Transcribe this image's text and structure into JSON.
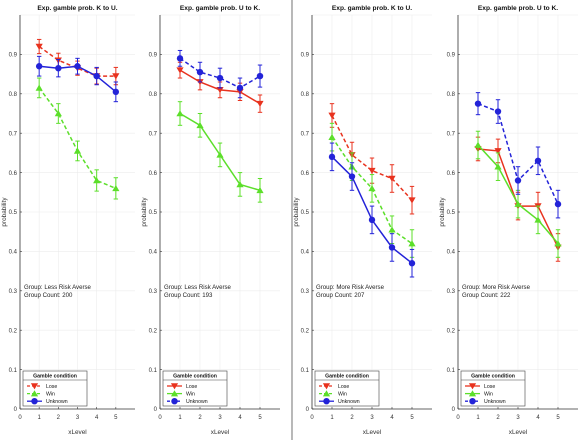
{
  "colors": {
    "lose": "#e8321e",
    "win": "#5cdf2a",
    "unknown": "#2323d8",
    "divider": "#8a8a8a"
  },
  "chart_data": [
    {
      "type": "line",
      "title": "Exp. gamble prob. K to U.",
      "xlabel": "xLevel",
      "ylabel": "probability",
      "xlim": [
        0,
        6
      ],
      "ylim": [
        0,
        1
      ],
      "xticks": [
        "0",
        "1",
        "2",
        "3",
        "4",
        "5"
      ],
      "yticks": [
        "0",
        "0.1",
        "0.2",
        "0.3",
        "0.4",
        "0.5",
        "0.6",
        "0.7",
        "0.8",
        "0.9"
      ],
      "grid": true,
      "annotation": [
        "Group: Less Risk Averse",
        "Group Count: 200"
      ],
      "legend": {
        "title": "Gamble condition",
        "position": "bottom-left"
      },
      "series": [
        {
          "name": "Lose",
          "style": "dashed",
          "x": [
            1,
            2,
            3,
            4,
            5
          ],
          "y": [
            0.92,
            0.885,
            0.865,
            0.845,
            0.845
          ],
          "err": [
            0.018,
            0.018,
            0.018,
            0.02,
            0.022
          ]
        },
        {
          "name": "Win",
          "style": "dashed",
          "x": [
            1,
            2,
            3,
            4,
            5
          ],
          "y": [
            0.815,
            0.75,
            0.655,
            0.58,
            0.56
          ],
          "err": [
            0.025,
            0.025,
            0.025,
            0.027,
            0.027
          ]
        },
        {
          "name": "Unknown",
          "style": "solid",
          "x": [
            1,
            2,
            3,
            4,
            5
          ],
          "y": [
            0.87,
            0.865,
            0.87,
            0.845,
            0.805
          ],
          "err": [
            0.025,
            0.022,
            0.02,
            0.022,
            0.025
          ]
        }
      ]
    },
    {
      "type": "line",
      "title": "Exp. gamble prob. U to K.",
      "xlabel": "xLevel",
      "ylabel": "probability",
      "xlim": [
        0,
        6
      ],
      "ylim": [
        0,
        1
      ],
      "xticks": [
        "0",
        "1",
        "2",
        "3",
        "4",
        "5"
      ],
      "yticks": [
        "0",
        "0.1",
        "0.2",
        "0.3",
        "0.4",
        "0.5",
        "0.6",
        "0.7",
        "0.8",
        "0.9"
      ],
      "grid": true,
      "annotation": [
        "Group: Less Risk Averse",
        "Group Count: 193"
      ],
      "legend": {
        "title": "Gamble condition",
        "position": "bottom-left"
      },
      "series": [
        {
          "name": "Lose",
          "style": "solid",
          "x": [
            1,
            2,
            3,
            4,
            5
          ],
          "y": [
            0.86,
            0.83,
            0.81,
            0.805,
            0.775
          ],
          "err": [
            0.02,
            0.02,
            0.02,
            0.022,
            0.022
          ]
        },
        {
          "name": "Win",
          "style": "solid",
          "x": [
            1,
            2,
            3,
            4,
            5
          ],
          "y": [
            0.75,
            0.72,
            0.645,
            0.57,
            0.555
          ],
          "err": [
            0.03,
            0.03,
            0.03,
            0.03,
            0.03
          ]
        },
        {
          "name": "Unknown",
          "style": "dashed",
          "x": [
            1,
            2,
            3,
            4,
            5
          ],
          "y": [
            0.89,
            0.855,
            0.84,
            0.815,
            0.845
          ],
          "err": [
            0.02,
            0.025,
            0.025,
            0.025,
            0.028
          ]
        }
      ]
    },
    {
      "type": "line",
      "title": "Exp. gamble prob. K to U.",
      "xlabel": "xLevel",
      "ylabel": "probability",
      "xlim": [
        0,
        6
      ],
      "ylim": [
        0,
        1
      ],
      "xticks": [
        "0",
        "1",
        "2",
        "3",
        "4",
        "5"
      ],
      "yticks": [
        "0",
        "0.1",
        "0.2",
        "0.3",
        "0.4",
        "0.5",
        "0.6",
        "0.7",
        "0.8",
        "0.9"
      ],
      "grid": true,
      "annotation": [
        "Group: More Risk Averse",
        "Group Count: 207"
      ],
      "legend": {
        "title": "Gamble condition",
        "position": "bottom-left"
      },
      "series": [
        {
          "name": "Lose",
          "style": "dashed",
          "x": [
            1,
            2,
            3,
            4,
            5
          ],
          "y": [
            0.745,
            0.645,
            0.605,
            0.585,
            0.53
          ],
          "err": [
            0.03,
            0.032,
            0.032,
            0.035,
            0.035
          ]
        },
        {
          "name": "Win",
          "style": "dashed",
          "x": [
            1,
            2,
            3,
            4,
            5
          ],
          "y": [
            0.69,
            0.615,
            0.56,
            0.455,
            0.42
          ],
          "err": [
            0.035,
            0.035,
            0.035,
            0.035,
            0.035
          ]
        },
        {
          "name": "Unknown",
          "style": "solid",
          "x": [
            1,
            2,
            3,
            4,
            5
          ],
          "y": [
            0.64,
            0.59,
            0.48,
            0.41,
            0.37
          ],
          "err": [
            0.035,
            0.035,
            0.035,
            0.035,
            0.035
          ]
        }
      ]
    },
    {
      "type": "line",
      "title": "Exp. gamble prob. U to K.",
      "xlabel": "xLevel",
      "ylabel": "probability",
      "xlim": [
        0,
        6
      ],
      "ylim": [
        0,
        1
      ],
      "xticks": [
        "0",
        "1",
        "2",
        "3",
        "4",
        "5"
      ],
      "yticks": [
        "0",
        "0.1",
        "0.2",
        "0.3",
        "0.4",
        "0.5",
        "0.6",
        "0.7",
        "0.8",
        "0.9"
      ],
      "grid": true,
      "annotation": [
        "Group: More Risk Averse",
        "Group Count: 222"
      ],
      "legend": {
        "title": "Gamble condition",
        "position": "bottom-left"
      },
      "series": [
        {
          "name": "Lose",
          "style": "solid",
          "x": [
            1,
            2,
            3,
            4,
            5
          ],
          "y": [
            0.66,
            0.655,
            0.515,
            0.515,
            0.41
          ],
          "err": [
            0.03,
            0.03,
            0.035,
            0.035,
            0.035
          ]
        },
        {
          "name": "Win",
          "style": "solid",
          "x": [
            1,
            2,
            3,
            4,
            5
          ],
          "y": [
            0.67,
            0.615,
            0.52,
            0.48,
            0.42
          ],
          "err": [
            0.035,
            0.035,
            0.035,
            0.035,
            0.035
          ]
        },
        {
          "name": "Unknown",
          "style": "dashed",
          "x": [
            1,
            2,
            3,
            4,
            5
          ],
          "y": [
            0.775,
            0.755,
            0.58,
            0.63,
            0.52
          ],
          "err": [
            0.028,
            0.03,
            0.035,
            0.035,
            0.035
          ]
        }
      ]
    }
  ]
}
